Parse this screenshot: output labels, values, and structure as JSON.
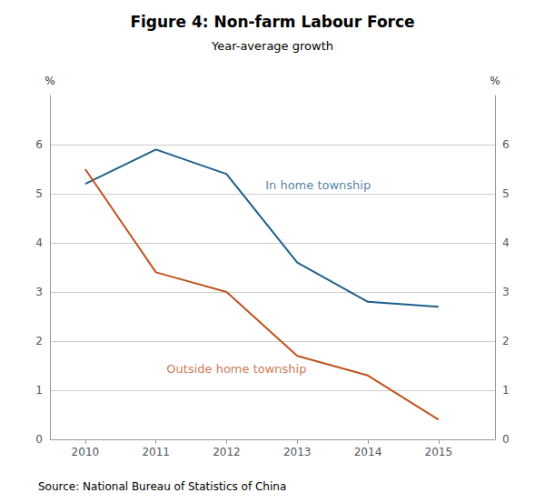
{
  "chart_data": {
    "type": "line",
    "title": "Figure 4: Non-farm Labour Force",
    "subtitle": "Year-average growth",
    "source": "Source: National Bureau of Statistics of China",
    "ylabel": "%",
    "y2label": "%",
    "x": [
      2010,
      2011,
      2012,
      2013,
      2014,
      2015
    ],
    "series": [
      {
        "color": "#1f5f8b",
        "values": [
          5.2,
          5.9,
          5.4,
          3.6,
          2.8,
          2.7
        ]
      },
      {
        "color": "#c0531f",
        "values": [
          5.5,
          3.4,
          3.0,
          1.7,
          1.3,
          0.4
        ]
      }
    ],
    "annotations": [
      {
        "text": "In home township",
        "x": 2012.55,
        "y": 5.05,
        "color": "#1f5f8b",
        "anchor": "bottom"
      },
      {
        "text": "Outside home township",
        "x": 2011.15,
        "y": 1.55,
        "color": "#c0531f",
        "anchor": "top"
      }
    ],
    "xlim": [
      2009.5,
      2015.8
    ],
    "xticks": [
      2010,
      2011,
      2012,
      2013,
      2014,
      2015
    ],
    "ylim": [
      0,
      7
    ],
    "yticks": [
      0,
      1,
      2,
      3,
      4,
      5,
      6
    ],
    "y2lim": [
      0,
      7
    ],
    "y2ticks": [
      0,
      1,
      2,
      3,
      4,
      5,
      6
    ],
    "grid": true
  }
}
